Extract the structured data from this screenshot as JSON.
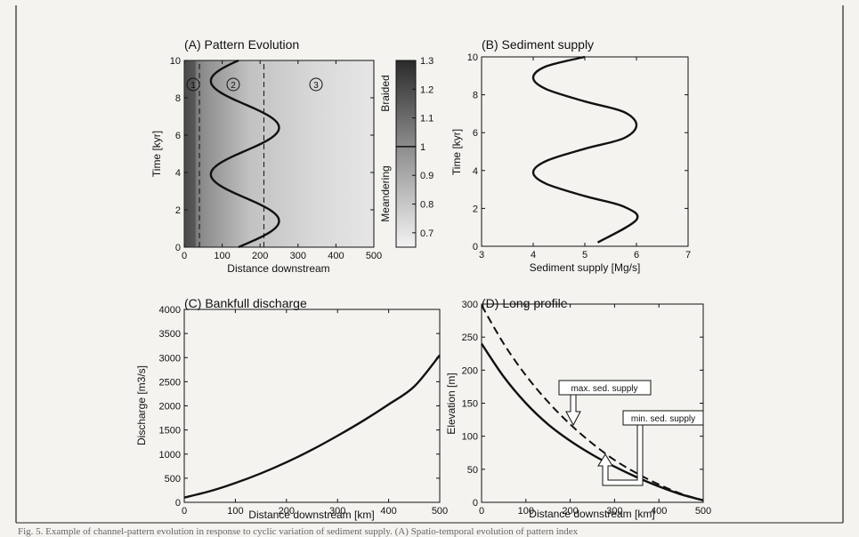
{
  "chart_data": [
    {
      "type": "heatmap",
      "title": "(A) Pattern Evolution",
      "xlabel": "Distance downstream",
      "ylabel": "Time [kyr]",
      "xlim": [
        0,
        500
      ],
      "ylim": [
        0,
        10
      ],
      "xticks": [
        "0",
        "100",
        "200",
        "300",
        "400",
        "500"
      ],
      "yticks": [
        "0",
        "2",
        "4",
        "6",
        "8",
        "10"
      ],
      "colorbar": {
        "min": 0.65,
        "max": 1.3,
        "ticks": [
          "0.7",
          "0.8",
          "0.9",
          "1",
          "1.1",
          "1.2",
          "1.3"
        ],
        "labels": [
          "Meandering",
          "Braided"
        ]
      },
      "zones": [
        "1",
        "2",
        "3"
      ],
      "zone_boundaries": [
        40,
        210
      ],
      "boundary_curve": {
        "x_min": 35,
        "x_max": 215,
        "period": 5,
        "min_at": 3.9
      }
    },
    {
      "type": "line",
      "title": "(B) Sediment supply",
      "xlabel": "Sediment supply [Mg/s]",
      "ylabel": "Time [kyr]",
      "xlim": [
        3,
        7
      ],
      "ylim": [
        0,
        10
      ],
      "xticks": [
        "3",
        "4",
        "5",
        "6",
        "7"
      ],
      "yticks": [
        "0",
        "2",
        "4",
        "6",
        "8",
        "10"
      ],
      "series": [
        {
          "x": [
            5.25,
            6.0,
            5.75,
            5.0,
            4.25,
            4.0,
            4.25,
            5.0,
            5.75,
            6.0,
            5.75,
            5.0,
            4.25,
            4.0,
            4.25,
            5.0
          ],
          "y": [
            0.2,
            1.4,
            2.1,
            2.65,
            3.3,
            3.9,
            4.5,
            5.15,
            5.7,
            6.4,
            7.1,
            7.65,
            8.3,
            8.9,
            9.5,
            10.0
          ]
        }
      ]
    },
    {
      "type": "line",
      "title": "(C) Bankfull discharge",
      "xlabel": "Distance downstream [km]",
      "ylabel": "Discharge [m3/s]",
      "xlim": [
        0,
        500
      ],
      "ylim": [
        0,
        4000
      ],
      "xticks": [
        "0",
        "100",
        "200",
        "300",
        "400",
        "500"
      ],
      "yticks": [
        "0",
        "500",
        "1000",
        "1500",
        "2000",
        "2500",
        "3000",
        "3500",
        "4000"
      ],
      "series": [
        {
          "x": [
            0,
            50,
            100,
            150,
            200,
            250,
            300,
            350,
            400,
            450,
            500
          ],
          "y": [
            100,
            230,
            400,
            600,
            830,
            1090,
            1380,
            1690,
            2030,
            2400,
            3050
          ]
        }
      ]
    },
    {
      "type": "line",
      "title": "(D) Long profile",
      "xlabel": "Distance downstream [km]",
      "ylabel": "Elevation [m]",
      "xlim": [
        0,
        500
      ],
      "ylim": [
        0,
        300
      ],
      "xticks": [
        "0",
        "100",
        "200",
        "300",
        "400",
        "500"
      ],
      "yticks": [
        "0",
        "50",
        "100",
        "150",
        "200",
        "250",
        "300"
      ],
      "series": [
        {
          "style": "solid",
          "x": [
            0,
            50,
            100,
            150,
            200,
            250,
            300,
            350,
            400,
            450,
            500
          ],
          "y": [
            240,
            190,
            150,
            118,
            93,
            72,
            54,
            38,
            24,
            12,
            3
          ]
        },
        {
          "style": "dashed",
          "x": [
            0,
            50,
            100,
            150,
            200,
            250,
            300,
            350,
            400,
            450,
            500
          ],
          "y": [
            298,
            240,
            192,
            152,
            118,
            89,
            64,
            44,
            27,
            13,
            3
          ]
        }
      ],
      "annotations": [
        "max. sed. supply",
        "min. sed. supply"
      ]
    }
  ],
  "footer": "Fig. 5.  Example of channel-pattern evolution in response to cyclic variation of sediment supply. (A) Spatio-temporal evolution of pattern index"
}
